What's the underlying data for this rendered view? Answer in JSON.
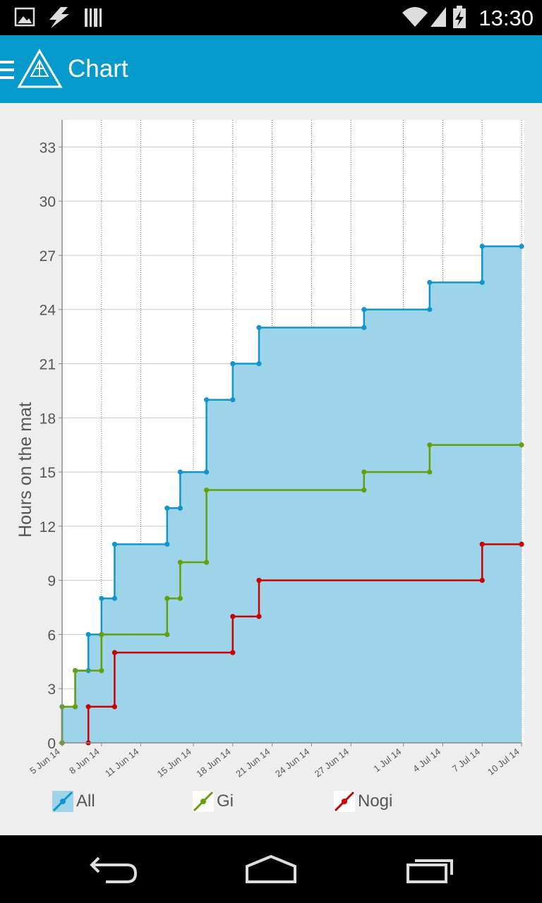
{
  "app": {
    "title": "Chart",
    "time": "13:30"
  },
  "icons": {
    "status": [
      "image-icon",
      "flash-icon",
      "barcode-icon",
      "wifi-icon",
      "signal-icon",
      "battery-charging-icon"
    ],
    "appbar": [
      "menu-icon",
      "app-logo-icon"
    ],
    "nav": [
      "back-icon",
      "home-icon",
      "recents-icon"
    ]
  },
  "colors": {
    "accent": "#0599cc",
    "all": "#1196cc",
    "all_fill": "#9dd4ea",
    "gi": "#64a00a",
    "nogi": "#cc0000",
    "grid": "#c8c8c8"
  },
  "chart_data": {
    "type": "line",
    "step": true,
    "ylabel": "Hours on the mat",
    "xlabel": "",
    "ylim": [
      0,
      34.5
    ],
    "yticks": [
      0,
      3,
      6,
      9,
      12,
      15,
      18,
      21,
      24,
      27,
      30,
      33
    ],
    "xlim": [
      "2014-06-05",
      "2014-07-10"
    ],
    "xticks": [
      {
        "date": "2014-06-05",
        "label": "5 Jun 14"
      },
      {
        "date": "2014-06-08",
        "label": "8 Jun 14"
      },
      {
        "date": "2014-06-11",
        "label": "11 Jun 14"
      },
      {
        "date": "2014-06-15",
        "label": "15 Jun 14"
      },
      {
        "date": "2014-06-18",
        "label": "18 Jun 14"
      },
      {
        "date": "2014-06-21",
        "label": "21 Jun 14"
      },
      {
        "date": "2014-06-24",
        "label": "24 Jun 14"
      },
      {
        "date": "2014-06-27",
        "label": "27 Jun 14"
      },
      {
        "date": "2014-07-01",
        "label": "1 Jul 14"
      },
      {
        "date": "2014-07-04",
        "label": "4 Jul 14"
      },
      {
        "date": "2014-07-07",
        "label": "7 Jul 14"
      },
      {
        "date": "2014-07-10",
        "label": "10 Jul 14"
      }
    ],
    "grid": true,
    "legend_position": "bottom",
    "series": [
      {
        "name": "All",
        "fill": true,
        "points": [
          [
            "2014-06-05",
            0
          ],
          [
            "2014-06-05",
            2
          ],
          [
            "2014-06-06",
            2
          ],
          [
            "2014-06-06",
            4
          ],
          [
            "2014-06-07",
            4
          ],
          [
            "2014-06-07",
            6
          ],
          [
            "2014-06-08",
            6
          ],
          [
            "2014-06-08",
            8
          ],
          [
            "2014-06-09",
            8
          ],
          [
            "2014-06-09",
            11
          ],
          [
            "2014-06-13",
            11
          ],
          [
            "2014-06-13",
            13
          ],
          [
            "2014-06-14",
            13
          ],
          [
            "2014-06-14",
            15
          ],
          [
            "2014-06-16",
            15
          ],
          [
            "2014-06-16",
            19
          ],
          [
            "2014-06-18",
            19
          ],
          [
            "2014-06-18",
            21
          ],
          [
            "2014-06-20",
            21
          ],
          [
            "2014-06-20",
            23
          ],
          [
            "2014-06-28",
            23
          ],
          [
            "2014-06-28",
            24
          ],
          [
            "2014-07-03",
            24
          ],
          [
            "2014-07-03",
            25.5
          ],
          [
            "2014-07-07",
            25.5
          ],
          [
            "2014-07-07",
            27.5
          ],
          [
            "2014-07-10",
            27.5
          ]
        ]
      },
      {
        "name": "Gi",
        "fill": false,
        "points": [
          [
            "2014-06-05",
            0
          ],
          [
            "2014-06-05",
            2
          ],
          [
            "2014-06-06",
            2
          ],
          [
            "2014-06-06",
            4
          ],
          [
            "2014-06-08",
            4
          ],
          [
            "2014-06-08",
            6
          ],
          [
            "2014-06-13",
            6
          ],
          [
            "2014-06-13",
            8
          ],
          [
            "2014-06-14",
            8
          ],
          [
            "2014-06-14",
            10
          ],
          [
            "2014-06-16",
            10
          ],
          [
            "2014-06-16",
            14
          ],
          [
            "2014-06-28",
            14
          ],
          [
            "2014-06-28",
            15
          ],
          [
            "2014-07-03",
            15
          ],
          [
            "2014-07-03",
            16.5
          ],
          [
            "2014-07-10",
            16.5
          ]
        ]
      },
      {
        "name": "Nogi",
        "fill": false,
        "points": [
          [
            "2014-06-07",
            0
          ],
          [
            "2014-06-07",
            2
          ],
          [
            "2014-06-09",
            2
          ],
          [
            "2014-06-09",
            5
          ],
          [
            "2014-06-18",
            5
          ],
          [
            "2014-06-18",
            7
          ],
          [
            "2014-06-20",
            7
          ],
          [
            "2014-06-20",
            9
          ],
          [
            "2014-07-07",
            9
          ],
          [
            "2014-07-07",
            11
          ],
          [
            "2014-07-10",
            11
          ]
        ]
      }
    ]
  }
}
